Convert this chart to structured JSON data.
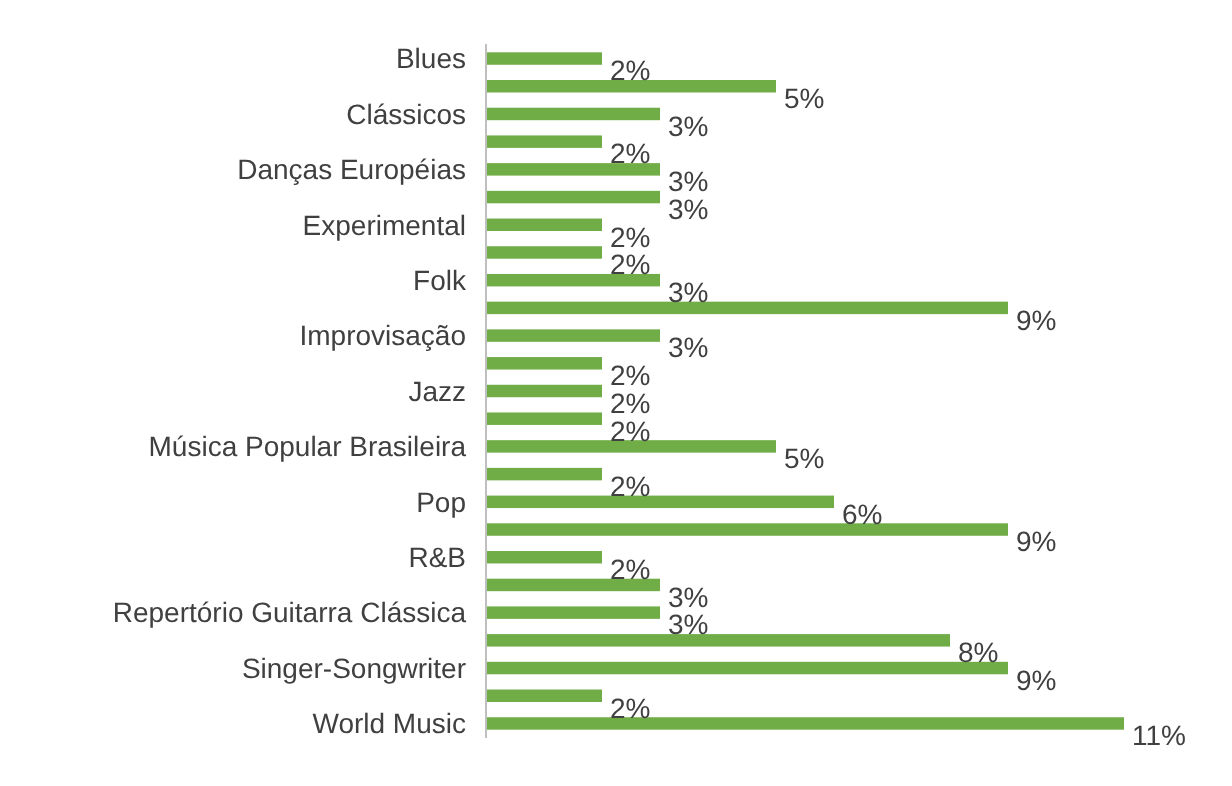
{
  "chart_data": {
    "type": "bar",
    "orientation": "horizontal",
    "categories": [
      "Blues",
      null,
      "Clássicos",
      null,
      "Danças Européias",
      null,
      "Experimental",
      null,
      "Folk",
      null,
      "Improvisação",
      null,
      "Jazz",
      null,
      "Música Popular Brasileira",
      null,
      "Pop",
      null,
      "R&B",
      null,
      "Repertório Guitarra Clássica",
      null,
      "Singer-Songwriter",
      null,
      "World Music"
    ],
    "values": [
      2,
      5,
      3,
      2,
      3,
      3,
      2,
      2,
      3,
      9,
      3,
      2,
      2,
      2,
      5,
      2,
      6,
      9,
      2,
      3,
      3,
      8,
      9,
      2,
      11
    ],
    "value_labels": [
      "2%",
      "5%",
      "3%",
      "2%",
      "3%",
      "3%",
      "2%",
      "2%",
      "3%",
      "9%",
      "3%",
      "2%",
      "2%",
      "2%",
      "5%",
      "2%",
      "6%",
      "9%",
      "2%",
      "3%",
      "3%",
      "8%",
      "9%",
      "2%",
      "11%"
    ],
    "color": "#70ad47"
  }
}
